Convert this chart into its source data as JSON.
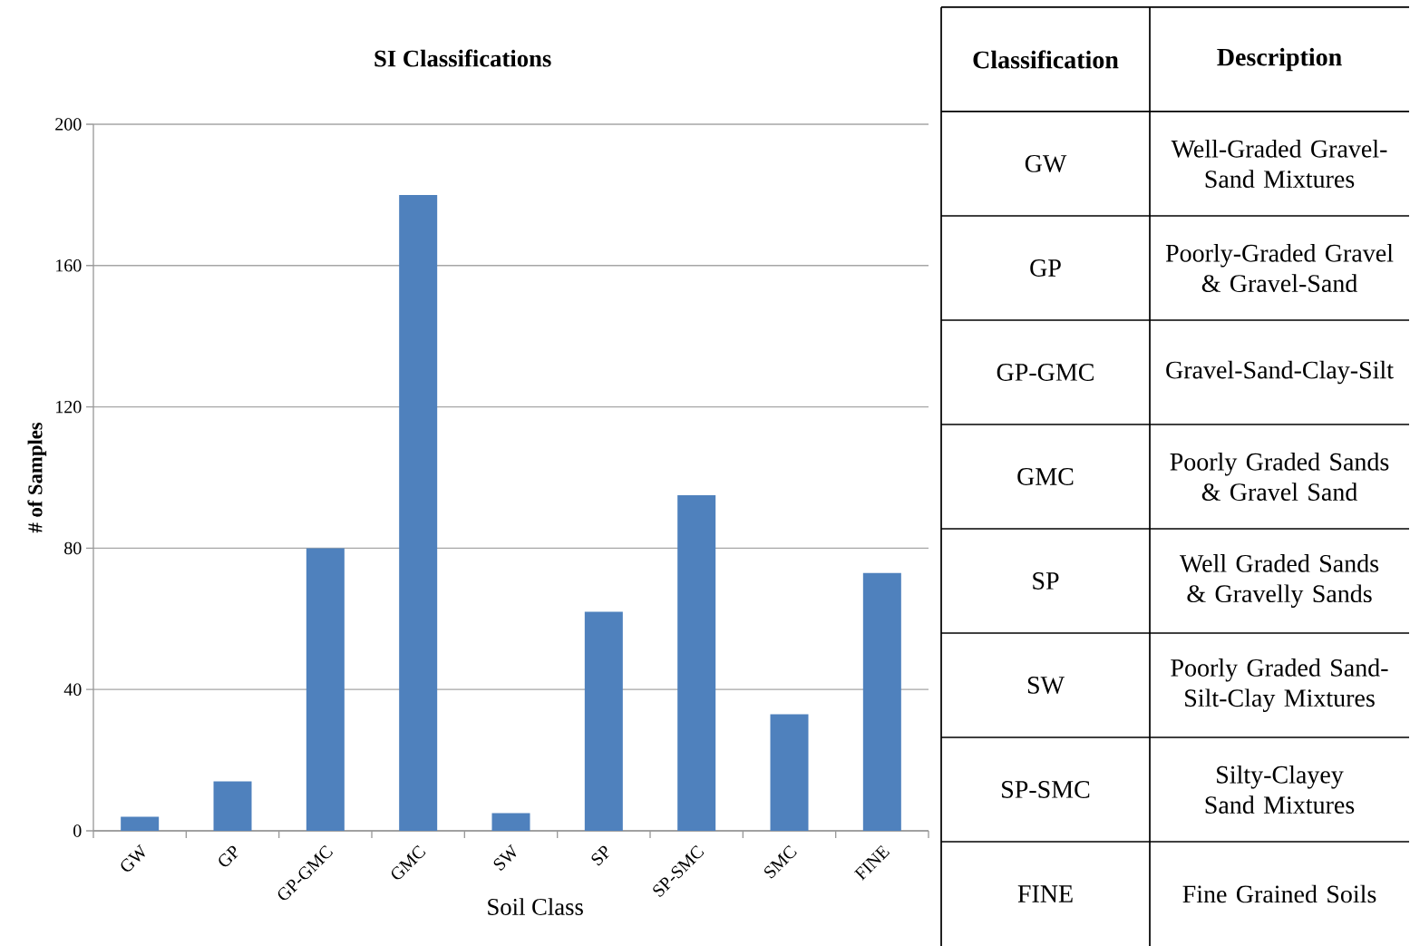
{
  "chart_data": [
    {
      "type": "bar",
      "title": "SI Classifications",
      "xlabel": "Soil Class",
      "ylabel": "# of Samples",
      "categories": [
        "GW",
        "GP",
        "GP-GMC",
        "GMC",
        "SW",
        "SP",
        "SP-SMC",
        "SMC",
        "FINE"
      ],
      "values": [
        4,
        14,
        80,
        180,
        5,
        62,
        95,
        33,
        73
      ],
      "color": "#4f81bd",
      "ylim": [
        0,
        200
      ],
      "yticks": [
        0,
        40,
        80,
        120,
        160,
        200
      ],
      "grid": "y"
    },
    {
      "type": "other",
      "annotations": [
        "Classification",
        "Description",
        "GW",
        "Well-Graded Gravel-Sand Mixtures",
        "GP",
        "Poorly-Graded Gravel & Gravel-Sand",
        "GP-GMC",
        "Gravel-Sand-Clay-Silt",
        "GMC",
        "Poorly Graded Sands & Gravel Sand",
        "SP",
        "Well Graded Sands & Gravelly Sands",
        "SW",
        "Poorly Graded Sand-Silt-Clay Mixtures",
        "SP-SMC",
        "Silty-Clayey Sand Mixtures",
        "FINE",
        "Fine Grained Soils"
      ]
    }
  ]
}
